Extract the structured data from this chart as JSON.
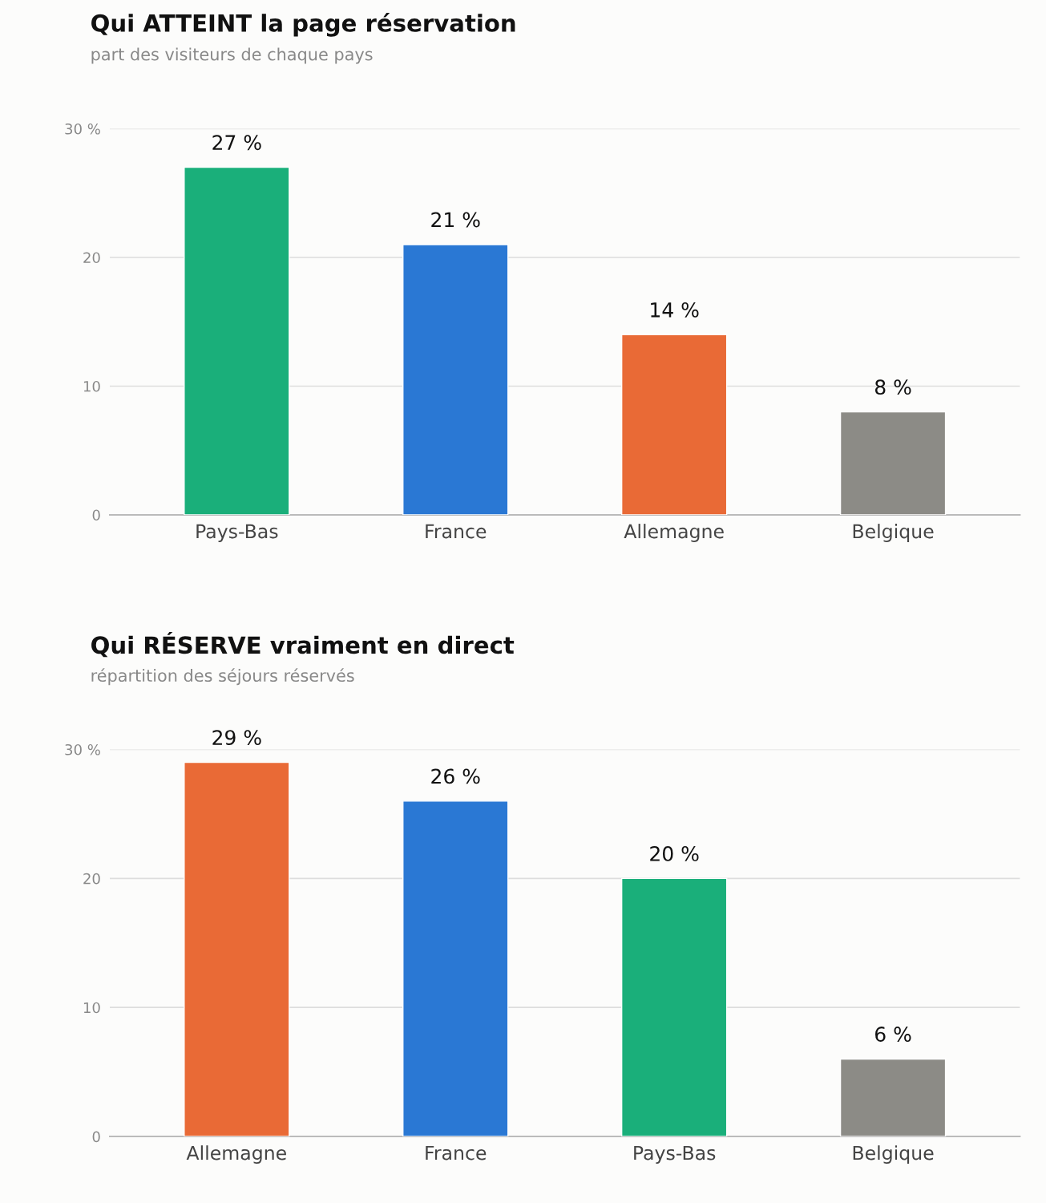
{
  "chart_data": [
    {
      "type": "bar",
      "title": "Qui ATTEINT la page réservation",
      "subtitle": "part des visiteurs de chaque pays",
      "categories": [
        "Pays-Bas",
        "France",
        "Allemagne",
        "Belgique"
      ],
      "values": [
        27,
        21,
        14,
        8
      ],
      "colors": [
        "#1aaf7a",
        "#2a78d4",
        "#e96a36",
        "#8c8b86"
      ],
      "value_labels": [
        "27 %",
        "21 %",
        "14 %",
        "8 %"
      ],
      "ylim": [
        0,
        30
      ],
      "yticks": [
        0,
        10,
        20,
        {
          "value": 30,
          "label": "30 %"
        }
      ],
      "grid": "y"
    },
    {
      "type": "bar",
      "title": "Qui RÉSERVE vraiment en direct",
      "subtitle": "répartition des séjours réservés",
      "categories": [
        "Allemagne",
        "France",
        "Pays-Bas",
        "Belgique"
      ],
      "values": [
        29,
        26,
        20,
        6
      ],
      "colors": [
        "#e96a36",
        "#2a78d4",
        "#1aaf7a",
        "#8c8b86"
      ],
      "value_labels": [
        "29 %",
        "26 %",
        "20 %",
        "6 %"
      ],
      "ylim": [
        0,
        30
      ],
      "yticks": [
        0,
        10,
        20,
        {
          "value": 30,
          "label": "30 %"
        }
      ],
      "grid": "y"
    }
  ]
}
